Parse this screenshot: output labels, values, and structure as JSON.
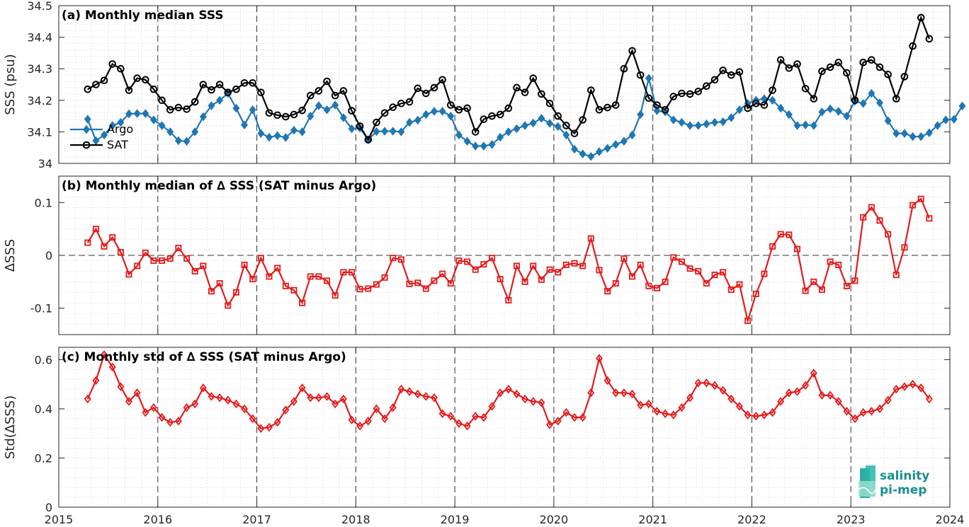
{
  "chart_data": [
    {
      "type": "line",
      "title": "(a) Monthly median SSS",
      "xlabel": "",
      "ylabel": "SSS (psu)",
      "xlim": [
        2015,
        2024
      ],
      "ylim": [
        34,
        34.5
      ],
      "yticks": [
        34,
        34.1,
        34.2,
        34.3,
        34.4,
        34.5
      ],
      "ytick_labels": [
        "34",
        "34.1",
        "34.2",
        "34.3",
        "34.4",
        "34.5"
      ],
      "grid": "dotted",
      "legend": "left",
      "x_start": "2015-04",
      "series": [
        {
          "name": "Argo",
          "color": "#1f77b4",
          "marker": "diamond",
          "values": [
            34.14,
            34.072,
            34.09,
            34.12,
            34.13,
            34.157,
            34.158,
            34.158,
            34.138,
            34.12,
            34.1,
            34.072,
            34.07,
            34.1,
            34.148,
            34.183,
            34.2,
            34.222,
            34.175,
            34.122,
            34.17,
            34.095,
            34.083,
            34.088,
            34.082,
            34.105,
            34.1,
            34.15,
            34.183,
            34.17,
            34.185,
            34.145,
            34.11,
            34.112,
            34.075,
            34.101,
            34.102,
            34.102,
            34.1,
            34.13,
            34.137,
            34.155,
            34.165,
            34.165,
            34.15,
            34.09,
            34.07,
            34.055,
            34.055,
            34.06,
            34.083,
            34.1,
            34.11,
            34.12,
            34.128,
            34.143,
            34.127,
            34.117,
            34.09,
            34.045,
            34.03,
            34.022,
            34.037,
            34.048,
            34.06,
            34.07,
            34.09,
            34.155,
            34.27,
            34.167,
            34.163,
            34.138,
            34.13,
            34.12,
            34.12,
            34.125,
            34.13,
            34.132,
            34.145,
            34.17,
            34.19,
            34.2,
            34.205,
            34.2,
            34.175,
            34.155,
            34.12,
            34.122,
            34.12,
            34.163,
            34.173,
            34.165,
            34.15,
            34.197,
            34.19,
            34.222,
            34.192,
            34.135,
            34.095,
            34.095,
            34.085,
            34.085,
            34.097,
            34.12,
            34.138,
            34.14,
            34.182
          ]
        },
        {
          "name": "SAT",
          "color": "#000000",
          "marker": "circle",
          "values": [
            34.235,
            34.25,
            34.263,
            34.315,
            34.3,
            34.232,
            34.27,
            34.265,
            34.235,
            34.2,
            34.17,
            34.177,
            34.172,
            34.195,
            34.25,
            34.233,
            34.25,
            34.225,
            34.235,
            34.255,
            34.255,
            34.225,
            34.16,
            34.153,
            34.148,
            34.155,
            34.168,
            34.215,
            34.23,
            34.26,
            34.215,
            34.23,
            34.167,
            34.118,
            34.075,
            34.13,
            34.16,
            34.178,
            34.19,
            34.195,
            34.238,
            34.222,
            34.24,
            34.265,
            34.185,
            34.17,
            34.175,
            34.1,
            34.14,
            34.15,
            34.155,
            34.175,
            34.24,
            34.225,
            34.27,
            34.22,
            34.19,
            34.15,
            34.12,
            34.095,
            34.138,
            34.232,
            34.17,
            34.177,
            34.185,
            34.3,
            34.357,
            34.28,
            34.207,
            34.185,
            34.17,
            34.212,
            34.222,
            34.22,
            34.228,
            34.245,
            34.265,
            34.295,
            34.28,
            34.29,
            34.175,
            34.19,
            34.185,
            34.232,
            34.328,
            34.302,
            34.315,
            34.237,
            34.205,
            34.292,
            34.305,
            34.32,
            34.287,
            34.2,
            34.32,
            34.328,
            34.305,
            34.282,
            34.205,
            34.275,
            34.372,
            34.462,
            34.395
          ]
        }
      ]
    },
    {
      "type": "line",
      "title": "(b) Monthly median of ∆ SSS (SAT minus Argo)",
      "xlabel": "",
      "ylabel": "∆SSS",
      "xlim": [
        2015,
        2024
      ],
      "ylim": [
        -0.15,
        0.15
      ],
      "yticks": [
        -0.1,
        0,
        0.1
      ],
      "ytick_labels": [
        "-0.1",
        "0",
        "0.1"
      ],
      "grid": "dotted",
      "x_start": "2015-04",
      "series": [
        {
          "color": "#e41a1c",
          "marker": "square",
          "values": [
            0.024,
            0.05,
            0.017,
            0.034,
            0.006,
            -0.036,
            -0.02,
            0.005,
            -0.01,
            -0.01,
            -0.006,
            0.014,
            -0.006,
            -0.03,
            -0.02,
            -0.068,
            -0.053,
            -0.095,
            -0.07,
            -0.018,
            -0.045,
            -0.005,
            -0.04,
            -0.024,
            -0.058,
            -0.066,
            -0.09,
            -0.04,
            -0.04,
            -0.048,
            -0.076,
            -0.032,
            -0.032,
            -0.064,
            -0.063,
            -0.055,
            -0.042,
            -0.005,
            -0.008,
            -0.054,
            -0.052,
            -0.063,
            -0.048,
            -0.035,
            -0.053,
            -0.01,
            -0.012,
            -0.027,
            -0.017,
            -0.005,
            -0.045,
            -0.085,
            -0.02,
            -0.05,
            -0.02,
            -0.046,
            -0.027,
            -0.032,
            -0.018,
            -0.015,
            -0.02,
            0.032,
            -0.028,
            -0.068,
            -0.053,
            -0.006,
            -0.04,
            -0.018,
            -0.058,
            -0.062,
            -0.05,
            -0.004,
            -0.012,
            -0.025,
            -0.03,
            -0.053,
            -0.037,
            -0.032,
            -0.065,
            -0.055,
            -0.124,
            -0.073,
            -0.035,
            0.017,
            0.04,
            0.039,
            0.012,
            -0.067,
            -0.05,
            -0.065,
            -0.012,
            -0.018,
            -0.058,
            -0.048,
            0.072,
            0.091,
            0.066,
            0.04,
            -0.037,
            0.015,
            0.095,
            0.107,
            0.07
          ]
        }
      ]
    },
    {
      "type": "line",
      "title": "(c) Monthly std of ∆ SSS (SAT minus Argo)",
      "xlabel": "",
      "ylabel": "Std(∆SSS)",
      "xlim": [
        2015,
        2024
      ],
      "ylim": [
        0,
        0.65
      ],
      "yticks": [
        0,
        0.2,
        0.4,
        0.6
      ],
      "ytick_labels": [
        "0",
        "0.2",
        "0.4",
        "0.6"
      ],
      "xticks": [
        2015,
        2016,
        2017,
        2018,
        2019,
        2020,
        2021,
        2022,
        2023,
        2024
      ],
      "xtick_labels": [
        "2015",
        "2016",
        "2017",
        "2018",
        "2019",
        "2020",
        "2021",
        "2022",
        "2023",
        "2024"
      ],
      "grid": "dotted",
      "x_start": "2015-04",
      "series": [
        {
          "color": "#e41a1c",
          "marker": "diamond",
          "values": [
            0.44,
            0.515,
            0.62,
            0.57,
            0.49,
            0.43,
            0.465,
            0.385,
            0.405,
            0.365,
            0.345,
            0.35,
            0.405,
            0.42,
            0.485,
            0.45,
            0.445,
            0.435,
            0.42,
            0.4,
            0.36,
            0.32,
            0.325,
            0.345,
            0.395,
            0.43,
            0.485,
            0.445,
            0.445,
            0.45,
            0.42,
            0.44,
            0.355,
            0.33,
            0.35,
            0.4,
            0.36,
            0.405,
            0.48,
            0.47,
            0.46,
            0.45,
            0.445,
            0.38,
            0.37,
            0.34,
            0.33,
            0.37,
            0.365,
            0.41,
            0.465,
            0.48,
            0.46,
            0.44,
            0.43,
            0.425,
            0.335,
            0.35,
            0.385,
            0.365,
            0.365,
            0.465,
            0.605,
            0.515,
            0.465,
            0.465,
            0.46,
            0.415,
            0.42,
            0.39,
            0.38,
            0.375,
            0.405,
            0.445,
            0.505,
            0.505,
            0.495,
            0.475,
            0.44,
            0.41,
            0.375,
            0.37,
            0.375,
            0.385,
            0.43,
            0.465,
            0.47,
            0.495,
            0.545,
            0.455,
            0.455,
            0.43,
            0.39,
            0.36,
            0.385,
            0.39,
            0.4,
            0.435,
            0.48,
            0.49,
            0.5,
            0.485,
            0.44
          ]
        }
      ]
    }
  ],
  "logo": {
    "text_line1": "salinity",
    "text_line2": "pi-mep"
  }
}
